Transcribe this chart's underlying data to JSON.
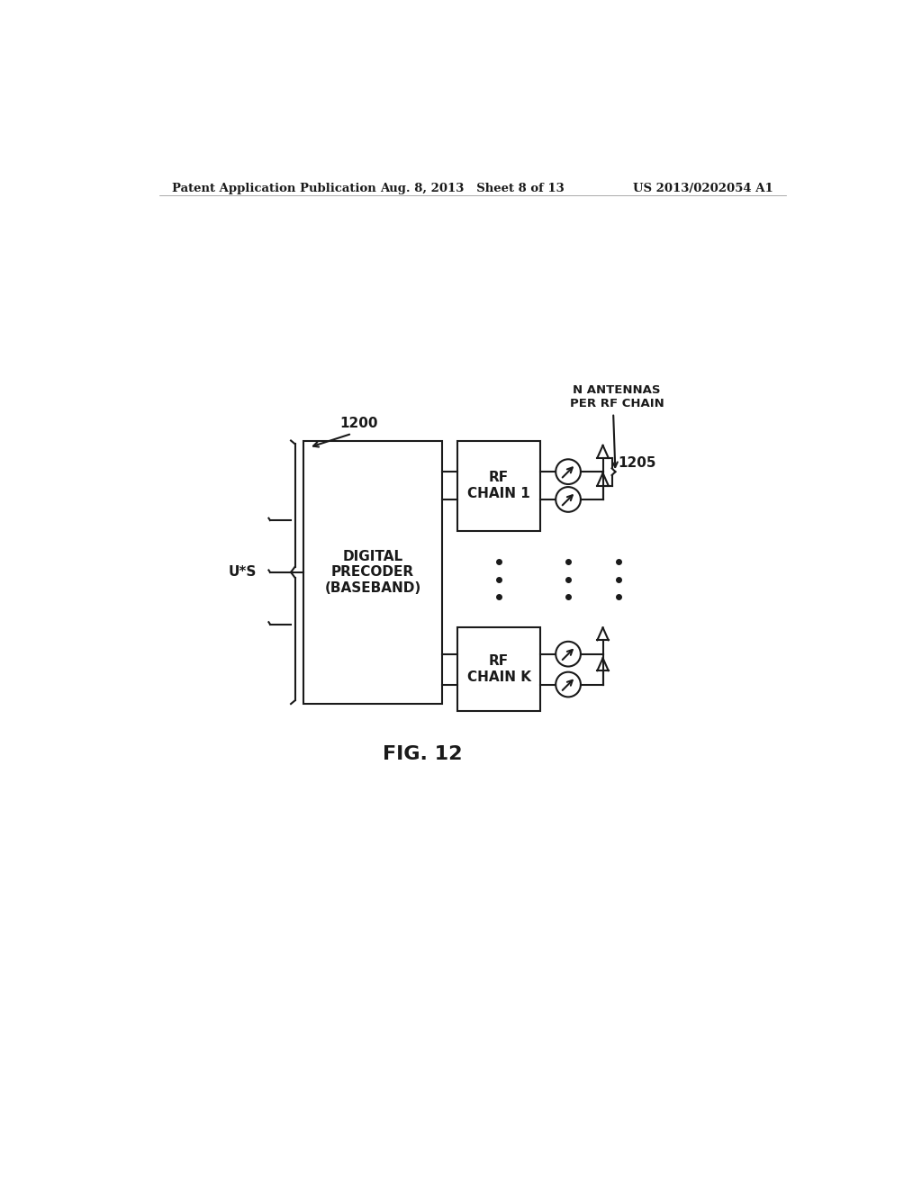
{
  "header_left": "Patent Application Publication",
  "header_mid": "Aug. 8, 2013   Sheet 8 of 13",
  "header_right": "US 2013/0202054 A1",
  "fig_label": "FIG. 12",
  "label_1200": "1200",
  "label_1205": "1205",
  "label_us": "U*S",
  "label_n_antennas": "N ANTENNAS\nPER RF CHAIN",
  "label_digital": "DIGITAL\nPRECODER\n(BASEBAND)",
  "label_rf1": "RF\nCHAIN 1",
  "label_rfk": "RF\nCHAIN K",
  "bg_color": "#ffffff",
  "line_color": "#1a1a1a"
}
